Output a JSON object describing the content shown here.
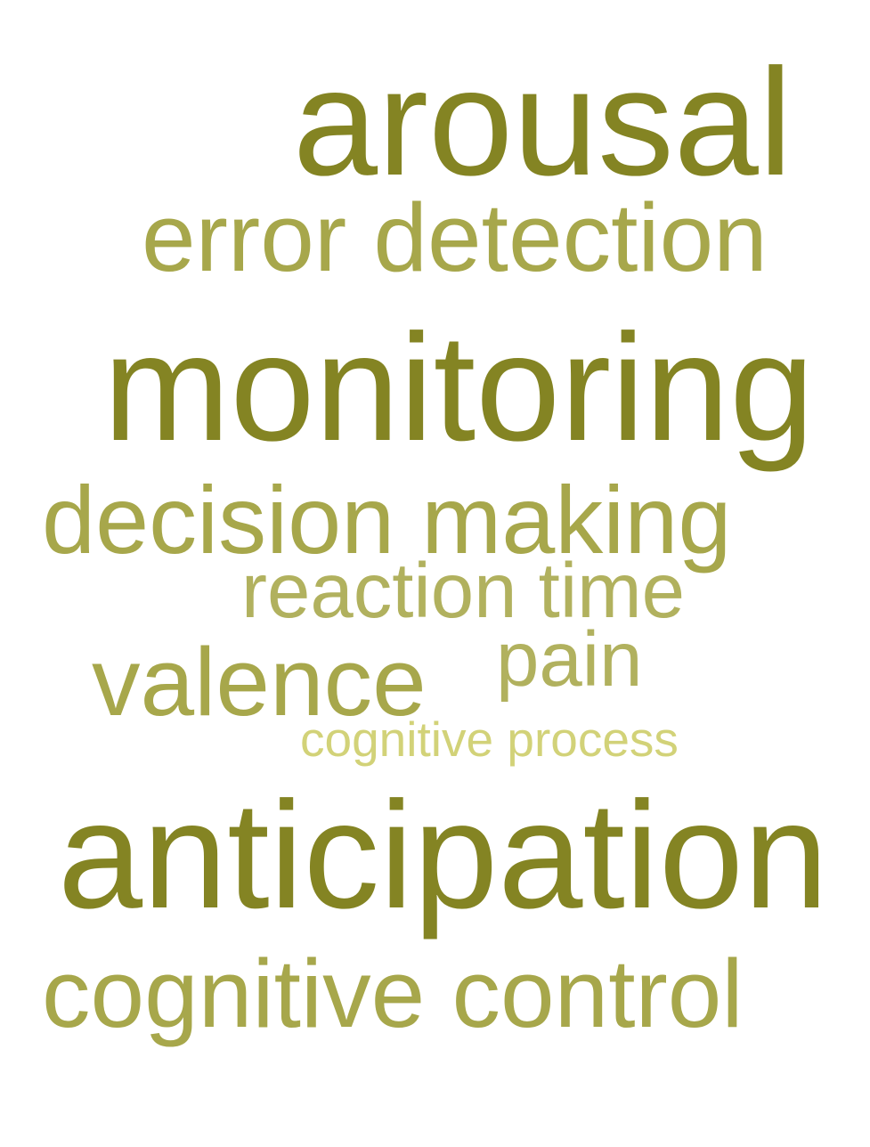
{
  "word_cloud": {
    "words": [
      {
        "text": "arousal",
        "color": "#848423"
      },
      {
        "text": "error detection",
        "color": "#a7a74b"
      },
      {
        "text": "monitoring",
        "color": "#848423"
      },
      {
        "text": "decision making",
        "color": "#a7a74b"
      },
      {
        "text": "reaction time",
        "color": "#b1b15e"
      },
      {
        "text": "valence",
        "color": "#a7a74b"
      },
      {
        "text": "pain",
        "color": "#b1b15e"
      },
      {
        "text": "cognitive process",
        "color": "#d2d278"
      },
      {
        "text": "anticipation",
        "color": "#848423"
      },
      {
        "text": "cognitive control",
        "color": "#a7a74b"
      }
    ]
  }
}
